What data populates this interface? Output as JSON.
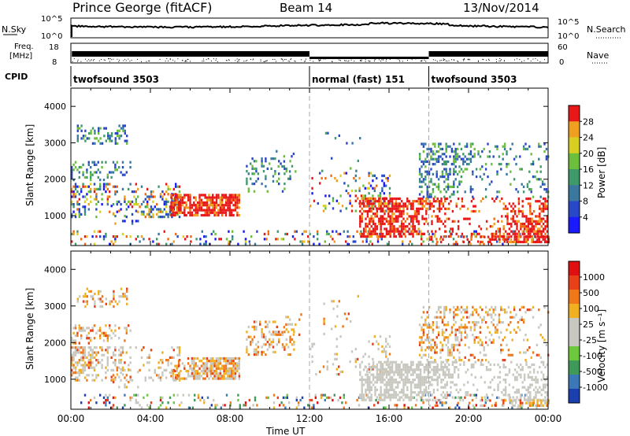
{
  "header": {
    "station": "Prince George (fitACF)",
    "beam": "Beam 14",
    "date": "13/Nov/2014"
  },
  "top_panels": {
    "nsky_label": "N.Sky",
    "nsky_tick_top": "10^5",
    "nsky_tick_bottom": "10^0",
    "nsearch_label": "N.Search",
    "nsearch_tick_top": "10^5",
    "nsearch_tick_bottom": "10^0",
    "freq_label_1": "Freq.",
    "freq_label_2": "[MHz]",
    "freq_tick_top": "18",
    "freq_tick_bottom": "8",
    "nave_label": "Nave",
    "nave_tick_top": "60",
    "nave_tick_bottom": "0",
    "cpid_label": "CPID"
  },
  "cpid_segments": [
    {
      "label": "twofsound 3503",
      "start_h": 0
    },
    {
      "label": "normal (fast) 151",
      "start_h": 12
    },
    {
      "label": "twofsound 3503",
      "start_h": 18
    }
  ],
  "chart_data": [
    {
      "type": "heatmap",
      "quantity": "Power",
      "xlabel": "",
      "ylabel": "Slant Range [km]",
      "xlim": [
        0,
        24
      ],
      "ylim": [
        180,
        4500
      ],
      "colorbar_label": "Power [dB]",
      "colorbar_ticks": [
        "4",
        "8",
        "12",
        "16",
        "20",
        "24",
        "28"
      ],
      "colors": [
        "#1a1aff",
        "#2848c8",
        "#3a78a0",
        "#3f9a6a",
        "#6cbf3c",
        "#d8d020",
        "#f0a020",
        "#f06a10",
        "#e81818"
      ],
      "y_ticks": [
        1000,
        2000,
        3000,
        4000
      ]
    },
    {
      "type": "heatmap",
      "quantity": "Velocity",
      "xlabel": "Time UT",
      "ylabel": "Slant Range [km]",
      "xlim": [
        0,
        24
      ],
      "ylim": [
        180,
        4500
      ],
      "colorbar_label": "Velocity [m s⁻¹]",
      "colorbar_ticks": [
        "1000",
        "500",
        "100",
        "25",
        "-25",
        "-100",
        "-500",
        "-1000"
      ],
      "colors": [
        "#1c3fb0",
        "#3a78b8",
        "#3f9a5a",
        "#6cc83c",
        "#c8c8c0",
        "#c8c8c0",
        "#f0b020",
        "#f07818",
        "#e84018",
        "#e01010"
      ],
      "y_ticks": [
        1000,
        2000,
        3000,
        4000
      ],
      "x_ticks": [
        "00:00",
        "04:00",
        "08:00",
        "12:00",
        "16:00",
        "20:00",
        "00:00"
      ]
    }
  ]
}
